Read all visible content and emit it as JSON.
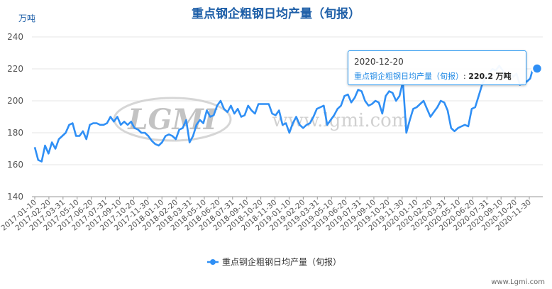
{
  "chart_data": {
    "type": "line",
    "title": "重点钢企粗钢日均产量（旬报）",
    "ylabel": "万吨",
    "ylim": [
      140,
      240
    ],
    "yticks": [
      140,
      160,
      180,
      200,
      220,
      240
    ],
    "grid": true,
    "legend": "bottom",
    "color": "#2f8ff5",
    "xticks": [
      "2017-01-10",
      "2017-02-20",
      "2017-03-31",
      "2017-05-10",
      "2017-06-20",
      "2017-07-31",
      "2017-09-10",
      "2017-10-20",
      "2017-11-30",
      "2018-01-10",
      "2018-02-20",
      "2018-03-31",
      "2018-05-10",
      "2018-06-20",
      "2018-07-31",
      "2018-09-10",
      "2018-10-20",
      "2018-11-30",
      "2019-01-10",
      "2019-02-20",
      "2019-03-31",
      "2019-05-10",
      "2019-06-20",
      "2019-07-31",
      "2019-09-10",
      "2019-10-20",
      "2019-11-30",
      "2020-01-10",
      "2020-02-20",
      "2020-03-31",
      "2020-05-10",
      "2020-06-20",
      "2020-07-31",
      "2020-09-10",
      "2020-10-20",
      "2020-11-30"
    ],
    "series": [
      {
        "name": "重点钢企粗钢日均产量（旬报）",
        "values": [
          171,
          163,
          162,
          172,
          167,
          174,
          170,
          176,
          178,
          180,
          185,
          186,
          178,
          178,
          181,
          176,
          185,
          186,
          186,
          185,
          185,
          186,
          190,
          187,
          190,
          185,
          187,
          185,
          187,
          183,
          182,
          180,
          180,
          178,
          175,
          173,
          172,
          174,
          178,
          179,
          178,
          176,
          182,
          183,
          188,
          174,
          178,
          185,
          188,
          186,
          194,
          190,
          191,
          197,
          200,
          195,
          193,
          197,
          192,
          195,
          190,
          191,
          197,
          194,
          192,
          198,
          198,
          198,
          198,
          192,
          191,
          194,
          185,
          186,
          180,
          186,
          190,
          185,
          183,
          185,
          186,
          190,
          195,
          196,
          197,
          185,
          188,
          191,
          195,
          197,
          203,
          204,
          199,
          202,
          207,
          206,
          200,
          197,
          198,
          200,
          199,
          192,
          203,
          206,
          205,
          200,
          203,
          212,
          180,
          188,
          195,
          196,
          198,
          200,
          195,
          190,
          193,
          196,
          200,
          199,
          194,
          183,
          181,
          183,
          184,
          185,
          184,
          195,
          196,
          203,
          210,
          215,
          217,
          220,
          219,
          222,
          219,
          214,
          218,
          215,
          217,
          210,
          211,
          212,
          214,
          222,
          220.2
        ]
      }
    ],
    "tooltip": {
      "date": "2020-12-20",
      "series": "重点钢企粗钢日均产量（旬报）",
      "value": "220.2",
      "unit": "万吨"
    },
    "watermark": {
      "logo": "LGMI",
      "url": "www.lgmi.com"
    },
    "credit": "www.Lgmi.com"
  }
}
